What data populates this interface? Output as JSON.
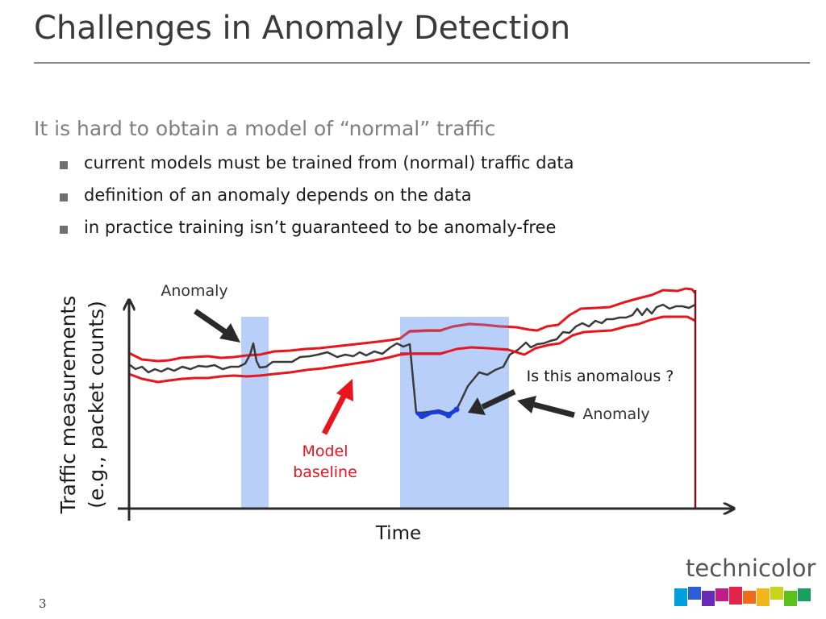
{
  "slide": {
    "title": "Challenges in Anomaly Detection",
    "heading": "It is hard to obtain a model of “normal” traffic",
    "bullets": [
      "current models must be trained from (normal) traffic data",
      "definition of an anomaly depends on the data",
      "in practice training isn’t guaranteed to be anomaly-free"
    ],
    "slide_number": "3"
  },
  "diagram": {
    "y_axis_label_line1": "Traffic measurements",
    "y_axis_label_line2": "(e.g., packet counts)",
    "x_axis_label": "Time",
    "annotations": {
      "anomaly_top": "Anomaly",
      "question": "Is this anomalous ?",
      "anomaly_right": "Anomaly",
      "model_line1": "Model",
      "model_line2": "baseline"
    },
    "colors": {
      "band_fill": "#b8cffa",
      "upper_red": "#e8141e",
      "lower_red": "#e8141e",
      "inner_baseline": "#b05070",
      "traffic": "#3a3a3a",
      "anomaly_highlight": "#1a3cdc",
      "model_arrow": "#e8141e",
      "pointer_arrow": "#2a2a2a",
      "axis": "#2a2a2a"
    }
  },
  "logo": {
    "text": "technicolor",
    "stripe_colors": [
      "#00a0e0",
      "#2a5fd8",
      "#6a2ab8",
      "#c01d8a",
      "#e0244a",
      "#f06a1c",
      "#f2b51c",
      "#c8d41c",
      "#5cc01c",
      "#18a060"
    ]
  }
}
